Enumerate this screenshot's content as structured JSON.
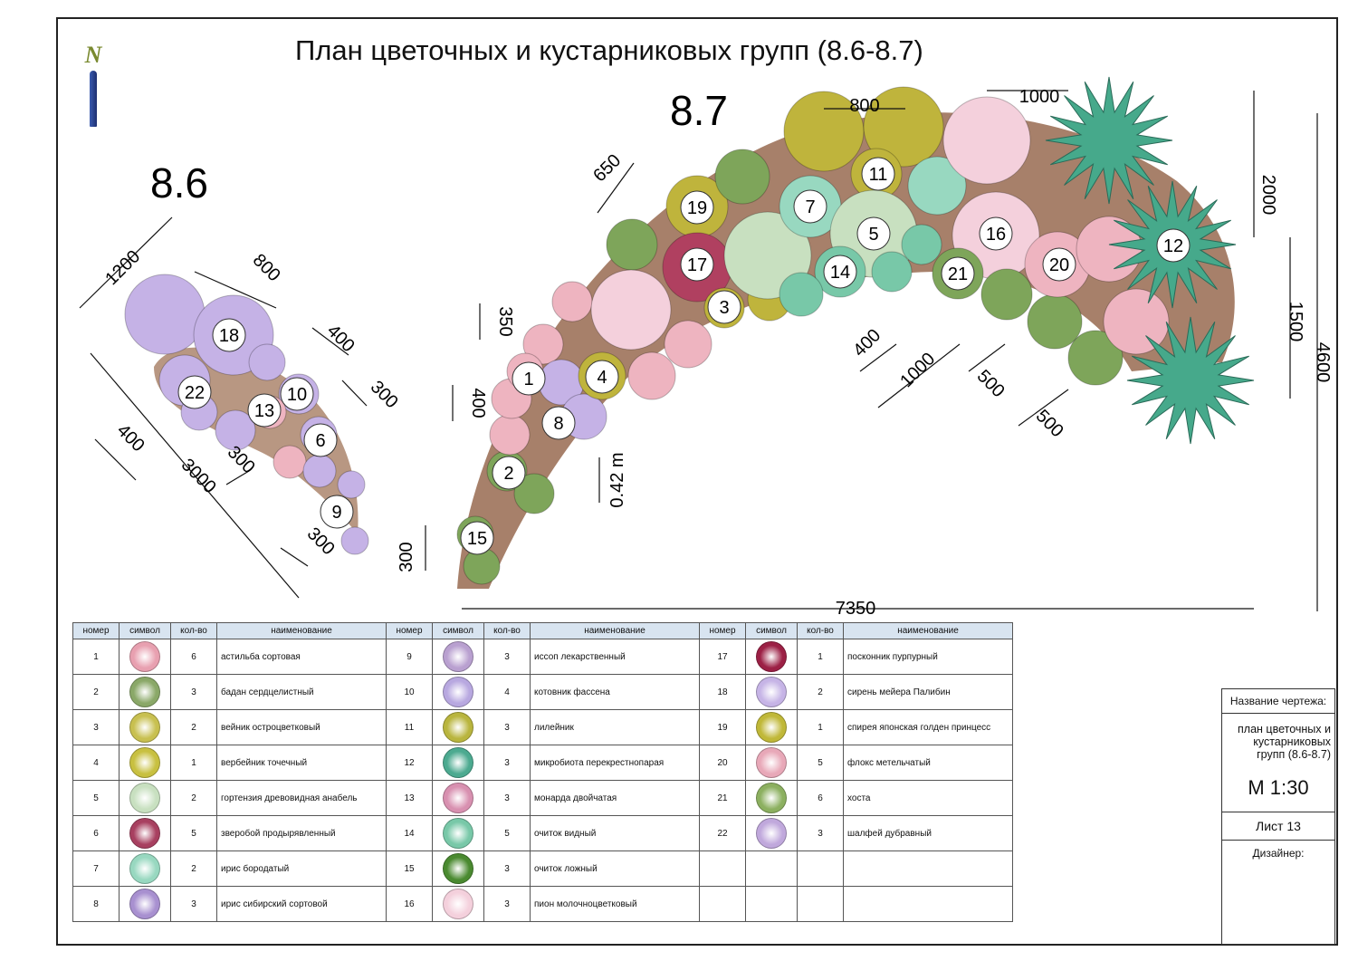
{
  "title": "План цветочных и кустарниковых групп (8.6-8.7)",
  "group_a_label": "8.6",
  "group_b_label": "8.7",
  "north_label": "N",
  "dimensions": {
    "a": [
      "1200",
      "800",
      "400",
      "300",
      "400",
      "3000",
      "300",
      "300"
    ],
    "b": [
      "650",
      "800",
      "1000",
      "2000",
      "1500",
      "4600",
      "350",
      "400",
      "400",
      "1000",
      "500",
      "500",
      "0.42 m",
      "300",
      "7350"
    ]
  },
  "plant_markers_a": [
    "18",
    "22",
    "13",
    "10",
    "6",
    "9"
  ],
  "plant_markers_b": [
    "19",
    "17",
    "3",
    "7",
    "11",
    "5",
    "14",
    "21",
    "16",
    "20",
    "12",
    "1",
    "4",
    "8",
    "2",
    "15"
  ],
  "legend": {
    "headers": [
      "номер",
      "символ",
      "кол-во",
      "наименование"
    ],
    "rows": [
      [
        {
          "n": "1",
          "c": "6",
          "name": "астильба сортовая",
          "color": "#e8a0b0"
        },
        {
          "n": "9",
          "c": "3",
          "name": "иссоп лекарственный",
          "color": "#b9a0d0"
        },
        {
          "n": "17",
          "c": "1",
          "name": "посконник пурпурный",
          "color": "#9c2045"
        }
      ],
      [
        {
          "n": "2",
          "c": "3",
          "name": "бадан сердцелистный",
          "color": "#8aa868"
        },
        {
          "n": "10",
          "c": "4",
          "name": "котовник фассена",
          "color": "#b8a8e0"
        },
        {
          "n": "18",
          "c": "2",
          "name": "сирень мейера Палибин",
          "color": "#c6b4e6"
        }
      ],
      [
        {
          "n": "3",
          "c": "2",
          "name": "вейник остроцветковый",
          "color": "#c8c050"
        },
        {
          "n": "11",
          "c": "3",
          "name": "лилейник",
          "color": "#b9b53e"
        },
        {
          "n": "19",
          "c": "1",
          "name": "спирея японская голден принцесс",
          "color": "#c0b838"
        }
      ],
      [
        {
          "n": "4",
          "c": "1",
          "name": "вербейник точечный",
          "color": "#c8c040"
        },
        {
          "n": "12",
          "c": "3",
          "name": "микробиота перекрестнопарая",
          "color": "#4caa90"
        },
        {
          "n": "20",
          "c": "5",
          "name": "флокс метельчатый",
          "color": "#e8a8b8"
        }
      ],
      [
        {
          "n": "5",
          "c": "2",
          "name": "гортензия древовидная анабель",
          "color": "#c8e0c0"
        },
        {
          "n": "13",
          "c": "3",
          "name": "монарда двойчатая",
          "color": "#d890b0"
        },
        {
          "n": "21",
          "c": "6",
          "name": "хоста",
          "color": "#8cb060"
        }
      ],
      [
        {
          "n": "6",
          "c": "5",
          "name": "зверобой продырявленный",
          "color": "#a84060"
        },
        {
          "n": "14",
          "c": "5",
          "name": "очиток видный",
          "color": "#78c8a8"
        },
        {
          "n": "22",
          "c": "3",
          "name": "шалфей дубравный",
          "color": "#c0a8dc"
        }
      ],
      [
        {
          "n": "7",
          "c": "2",
          "name": "ирис бородатый",
          "color": "#98d8c0"
        },
        {
          "n": "15",
          "c": "3",
          "name": "очиток ложный",
          "color": "#4a8a30"
        },
        {
          "n": "",
          "c": "",
          "name": "",
          "color": ""
        }
      ],
      [
        {
          "n": "8",
          "c": "3",
          "name": "ирис сибирский сортовой",
          "color": "#a890d0"
        },
        {
          "n": "16",
          "c": "3",
          "name": "пион молочноцветковый",
          "color": "#f4d0dc"
        },
        {
          "n": "",
          "c": "",
          "name": "",
          "color": ""
        }
      ]
    ]
  },
  "stamp": {
    "caption": "Название чертежа:",
    "drawing_name": "план цветочных и кустарниковых групп (8.6-8.7)",
    "scale": "М 1:30",
    "sheet": "Лист 13",
    "designer": "Дизайнер:"
  },
  "colors": {
    "mulch": "#a7806a",
    "pink": "#eeb4c0",
    "lilac": "#c5b2e6",
    "olive": "#bfb43c",
    "teal": "#46a98b",
    "green": "#7ea55a"
  }
}
